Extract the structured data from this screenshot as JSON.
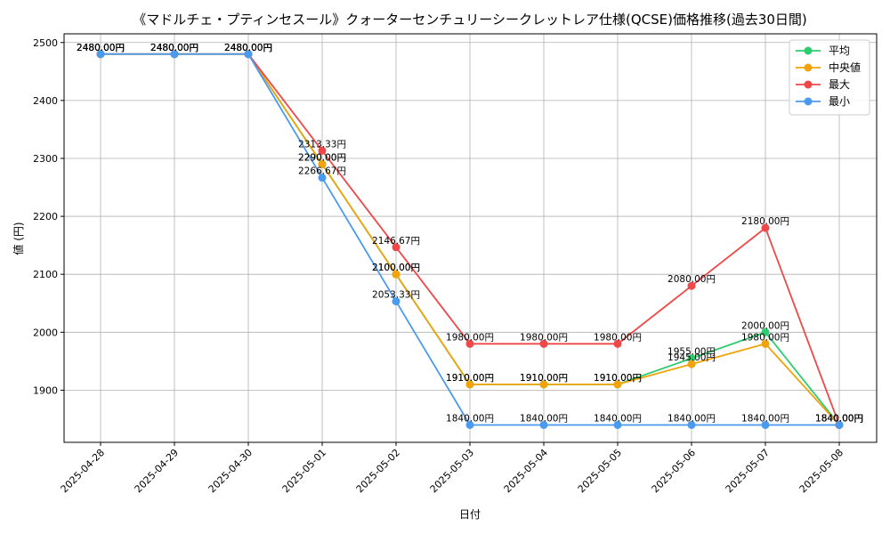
{
  "chart_data": {
    "type": "line",
    "title": "《マドルチェ・プティンセスール》クォーターセンチュリーシークレットレア仕様(QCSE)価格推移(過去30日間)",
    "xlabel": "日付",
    "ylabel": "値 (円)",
    "ylim": [
      1810,
      2515
    ],
    "yticks": [
      1900,
      2000,
      2100,
      2200,
      2300,
      2400,
      2500
    ],
    "grid": true,
    "legend_position": "top-right",
    "categories": [
      "2025-04-28",
      "2025-04-29",
      "2025-04-30",
      "2025-05-01",
      "2025-05-02",
      "2025-05-03",
      "2025-05-04",
      "2025-05-05",
      "2025-05-06",
      "2025-05-07",
      "2025-05-08"
    ],
    "series": [
      {
        "name": "平均",
        "color": "#2ecc71",
        "values": [
          2480,
          2480,
          2480,
          2290,
          2100,
          1910,
          1910,
          1910,
          1955,
          2000,
          1840
        ],
        "labels": [
          "2480.00円",
          "2480.00円",
          "2480.00円",
          "2290.00円",
          "2100.00円",
          "1910.00円",
          "1910.00円",
          "1910.00円",
          "1955.00円",
          "2000.00円",
          "1840.00円"
        ]
      },
      {
        "name": "中央値",
        "color": "#f0a30a",
        "values": [
          2480,
          2480,
          2480,
          2290,
          2100,
          1910,
          1910,
          1910,
          1945,
          1980,
          1840
        ],
        "labels": [
          "2480.00円",
          "2480.00円",
          "2480.00円",
          "2290.00円",
          "2100.00円",
          "1910.00円",
          "1910.00円",
          "1910.00円",
          "1945.00円",
          "1980.00円",
          "1840.00円"
        ]
      },
      {
        "name": "最大",
        "color": "#f04848",
        "values": [
          2480,
          2480,
          2480,
          2313.33,
          2146.67,
          1980,
          1980,
          1980,
          2080,
          2180,
          1840
        ],
        "labels": [
          "2480.00円",
          "2480.00円",
          "2480.00円",
          "2313.33円",
          "2146.67円",
          "1980.00円",
          "1980.00円",
          "1980.00円",
          "2080.00円",
          "2180.00円",
          "1840.00円"
        ]
      },
      {
        "name": "最小",
        "color": "#4a9af0",
        "values": [
          2480,
          2480,
          2480,
          2266.67,
          2053.33,
          1840,
          1840,
          1840,
          1840,
          1840,
          1840
        ],
        "labels": [
          "2480.00円",
          "2480.00円",
          "2480.00円",
          "2266.67円",
          "2053.33円",
          "1840.00円",
          "1840.00円",
          "1840.00円",
          "1840.00円",
          "1840.00円",
          "1840.00円"
        ]
      }
    ]
  }
}
